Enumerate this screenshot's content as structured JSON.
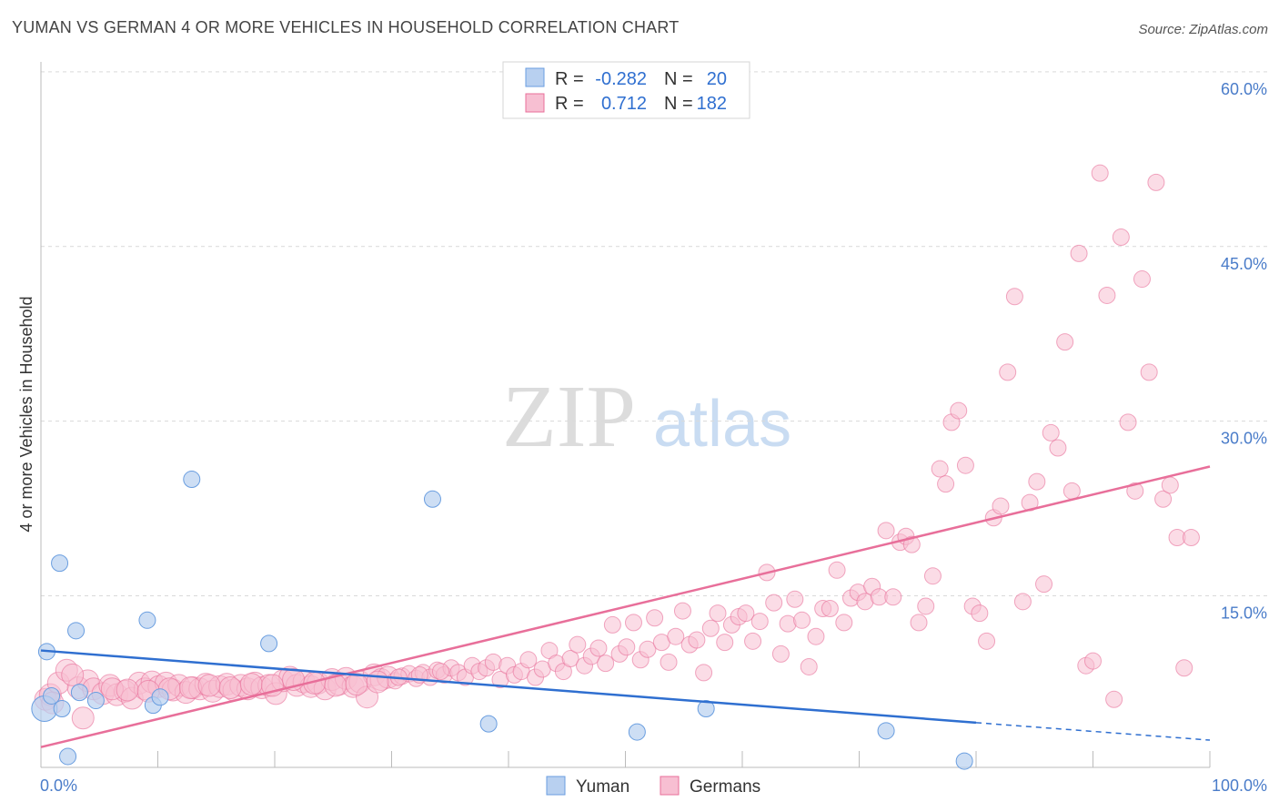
{
  "title": "YUMAN VS GERMAN 4 OR MORE VEHICLES IN HOUSEHOLD CORRELATION CHART",
  "source": "Source: ZipAtlas.com",
  "watermark": {
    "zip": "ZIP",
    "atlas": "atlas"
  },
  "legend": {
    "r_label": "R =",
    "n_label": "N =",
    "yuman": {
      "r": "-0.282",
      "n": "20"
    },
    "germans": {
      "r": "0.712",
      "n": "182"
    }
  },
  "bottom_legend": {
    "yuman": "Yuman",
    "germans": "Germans"
  },
  "colors": {
    "yuman": "#6a9ee0",
    "yuman_fill": "#b8d0f0",
    "germans": "#e86f9a",
    "germans_fill": "#f7bfd2",
    "tick": "#4a7cc9"
  },
  "chart_data": {
    "type": "scatter",
    "xlabel": "",
    "ylabel": "4 or more Vehicles in Household",
    "xlim": [
      0,
      100
    ],
    "ylim": [
      0,
      62
    ],
    "x_tick_labels": [
      "0.0%",
      "100.0%"
    ],
    "y_ticks": [
      15,
      30,
      45,
      60
    ],
    "y_tick_labels": [
      "15.0%",
      "30.0%",
      "45.0%",
      "60.0%"
    ],
    "series": [
      {
        "name": "Yuman",
        "points": [
          [
            0.3,
            5.3
          ],
          [
            0.5,
            10.2
          ],
          [
            0.9,
            6.4
          ],
          [
            1.6,
            17.8
          ],
          [
            1.8,
            5.3
          ],
          [
            2.3,
            1.2
          ],
          [
            3.0,
            12.0
          ],
          [
            3.3,
            6.7
          ],
          [
            4.7,
            6.0
          ],
          [
            9.1,
            12.9
          ],
          [
            9.6,
            5.6
          ],
          [
            10.2,
            6.3
          ],
          [
            12.9,
            25.0
          ],
          [
            19.5,
            10.9
          ],
          [
            33.5,
            23.3
          ],
          [
            38.3,
            4.0
          ],
          [
            51.0,
            3.3
          ],
          [
            56.9,
            5.3
          ],
          [
            72.3,
            3.4
          ],
          [
            79.0,
            0.8
          ]
        ],
        "trend": {
          "x": [
            0,
            80
          ],
          "y": [
            10.3,
            4.1
          ]
        },
        "trend_dashed": {
          "x": [
            80,
            100
          ],
          "y": [
            4.1,
            2.6
          ]
        }
      },
      {
        "name": "Germans",
        "points": [
          [
            0.4,
            6.1
          ],
          [
            0.8,
            6.5
          ],
          [
            1.5,
            7.5
          ],
          [
            2.2,
            8.6
          ],
          [
            3.2,
            7.1
          ],
          [
            4.0,
            7.7
          ],
          [
            4.5,
            7.0
          ],
          [
            5.3,
            6.6
          ],
          [
            5.9,
            7.3
          ],
          [
            6.5,
            6.5
          ],
          [
            7.2,
            6.8
          ],
          [
            7.8,
            6.2
          ],
          [
            8.4,
            7.5
          ],
          [
            8.9,
            7.0
          ],
          [
            9.5,
            7.6
          ],
          [
            10.1,
            7.2
          ],
          [
            10.7,
            7.5
          ],
          [
            11.3,
            6.9
          ],
          [
            11.8,
            7.3
          ],
          [
            12.4,
            6.7
          ],
          [
            13.0,
            7.1
          ],
          [
            13.6,
            7.0
          ],
          [
            14.1,
            7.4
          ],
          [
            14.7,
            6.8
          ],
          [
            15.3,
            7.2
          ],
          [
            15.9,
            7.4
          ],
          [
            16.5,
            6.9
          ],
          [
            17.1,
            7.3
          ],
          [
            17.7,
            7.0
          ],
          [
            18.3,
            7.5
          ],
          [
            18.9,
            7.1
          ],
          [
            19.5,
            7.3
          ],
          [
            20.1,
            6.6
          ],
          [
            20.7,
            7.7
          ],
          [
            21.3,
            8.0
          ],
          [
            21.9,
            7.3
          ],
          [
            22.5,
            7.6
          ],
          [
            23.1,
            7.2
          ],
          [
            23.7,
            7.5
          ],
          [
            24.3,
            7.0
          ],
          [
            24.9,
            7.8
          ],
          [
            25.5,
            7.4
          ],
          [
            26.1,
            7.9
          ],
          [
            26.7,
            7.2
          ],
          [
            27.3,
            7.6
          ],
          [
            27.9,
            6.3
          ],
          [
            28.5,
            8.2
          ],
          [
            29.1,
            7.8
          ],
          [
            29.7,
            8.0
          ],
          [
            30.3,
            7.7
          ],
          [
            30.9,
            8.1
          ],
          [
            31.5,
            8.3
          ],
          [
            32.1,
            7.9
          ],
          [
            32.7,
            8.4
          ],
          [
            33.3,
            8.0
          ],
          [
            33.9,
            8.6
          ],
          [
            34.5,
            8.2
          ],
          [
            35.1,
            8.8
          ],
          [
            35.7,
            8.4
          ],
          [
            36.3,
            8.0
          ],
          [
            36.9,
            9.0
          ],
          [
            37.5,
            8.5
          ],
          [
            38.1,
            8.8
          ],
          [
            38.7,
            9.3
          ],
          [
            39.3,
            7.8
          ],
          [
            39.9,
            9.0
          ],
          [
            40.5,
            8.2
          ],
          [
            41.1,
            8.5
          ],
          [
            41.7,
            9.5
          ],
          [
            42.3,
            8.0
          ],
          [
            42.9,
            8.7
          ],
          [
            43.5,
            10.3
          ],
          [
            44.1,
            9.2
          ],
          [
            44.7,
            8.5
          ],
          [
            45.3,
            9.6
          ],
          [
            45.9,
            10.8
          ],
          [
            46.5,
            9.0
          ],
          [
            47.1,
            9.8
          ],
          [
            47.7,
            10.5
          ],
          [
            48.3,
            9.2
          ],
          [
            48.9,
            12.5
          ],
          [
            49.5,
            10.0
          ],
          [
            50.1,
            10.6
          ],
          [
            50.7,
            12.7
          ],
          [
            51.3,
            9.5
          ],
          [
            51.9,
            10.4
          ],
          [
            52.5,
            13.1
          ],
          [
            53.1,
            11.0
          ],
          [
            53.7,
            9.3
          ],
          [
            54.3,
            11.5
          ],
          [
            54.9,
            13.7
          ],
          [
            55.5,
            10.8
          ],
          [
            56.1,
            11.2
          ],
          [
            56.7,
            8.4
          ],
          [
            57.3,
            12.2
          ],
          [
            57.9,
            13.5
          ],
          [
            58.5,
            11.0
          ],
          [
            59.1,
            12.5
          ],
          [
            59.7,
            13.2
          ],
          [
            60.3,
            13.5
          ],
          [
            60.9,
            11.1
          ],
          [
            61.5,
            12.8
          ],
          [
            62.1,
            17.0
          ],
          [
            62.7,
            14.4
          ],
          [
            63.3,
            10.0
          ],
          [
            63.9,
            12.6
          ],
          [
            64.5,
            14.7
          ],
          [
            65.1,
            12.9
          ],
          [
            65.7,
            8.9
          ],
          [
            66.3,
            11.5
          ],
          [
            66.9,
            13.9
          ],
          [
            67.5,
            13.9
          ],
          [
            68.1,
            17.2
          ],
          [
            68.7,
            12.7
          ],
          [
            69.3,
            14.8
          ],
          [
            69.9,
            15.3
          ],
          [
            70.5,
            14.5
          ],
          [
            71.1,
            15.8
          ],
          [
            71.7,
            14.9
          ],
          [
            72.3,
            20.6
          ],
          [
            72.9,
            14.9
          ],
          [
            73.5,
            19.6
          ],
          [
            74.0,
            20.1
          ],
          [
            74.5,
            19.4
          ],
          [
            75.1,
            12.7
          ],
          [
            75.7,
            14.1
          ],
          [
            76.3,
            16.7
          ],
          [
            76.9,
            25.9
          ],
          [
            77.4,
            24.6
          ],
          [
            77.9,
            29.9
          ],
          [
            78.5,
            30.9
          ],
          [
            79.1,
            26.2
          ],
          [
            79.7,
            14.1
          ],
          [
            80.3,
            13.5
          ],
          [
            80.9,
            11.1
          ],
          [
            81.5,
            21.7
          ],
          [
            82.1,
            22.7
          ],
          [
            82.7,
            34.2
          ],
          [
            83.3,
            40.7
          ],
          [
            84.0,
            14.5
          ],
          [
            84.6,
            23.0
          ],
          [
            85.2,
            24.8
          ],
          [
            85.8,
            16.0
          ],
          [
            86.4,
            29.0
          ],
          [
            87.0,
            27.7
          ],
          [
            87.6,
            36.8
          ],
          [
            88.2,
            24.0
          ],
          [
            88.8,
            44.4
          ],
          [
            89.4,
            9.0
          ],
          [
            90.0,
            9.4
          ],
          [
            90.6,
            51.3
          ],
          [
            91.2,
            40.8
          ],
          [
            91.8,
            6.1
          ],
          [
            92.4,
            45.8
          ],
          [
            93.0,
            29.9
          ],
          [
            93.6,
            24.0
          ],
          [
            94.2,
            42.2
          ],
          [
            94.8,
            34.2
          ],
          [
            95.4,
            50.5
          ],
          [
            96.0,
            23.3
          ],
          [
            96.6,
            24.5
          ],
          [
            97.2,
            20.0
          ],
          [
            97.8,
            8.8
          ],
          [
            98.4,
            20.0
          ],
          [
            1.0,
            5.8
          ],
          [
            2.7,
            8.2
          ],
          [
            3.6,
            4.5
          ],
          [
            6.1,
            7.0
          ],
          [
            7.4,
            6.9
          ],
          [
            9.2,
            6.8
          ],
          [
            11.0,
            7.0
          ],
          [
            12.8,
            7.1
          ],
          [
            14.4,
            7.3
          ],
          [
            16.2,
            7.1
          ],
          [
            18.0,
            7.4
          ],
          [
            19.8,
            7.3
          ],
          [
            21.6,
            7.8
          ],
          [
            23.4,
            7.5
          ],
          [
            25.2,
            7.3
          ],
          [
            27.0,
            7.4
          ],
          [
            28.8,
            7.6
          ],
          [
            30.6,
            8.0
          ],
          [
            32.4,
            8.2
          ],
          [
            34.2,
            8.5
          ]
        ],
        "trend": {
          "x": [
            0,
            100
          ],
          "y": [
            2.0,
            26.1
          ]
        }
      }
    ]
  }
}
